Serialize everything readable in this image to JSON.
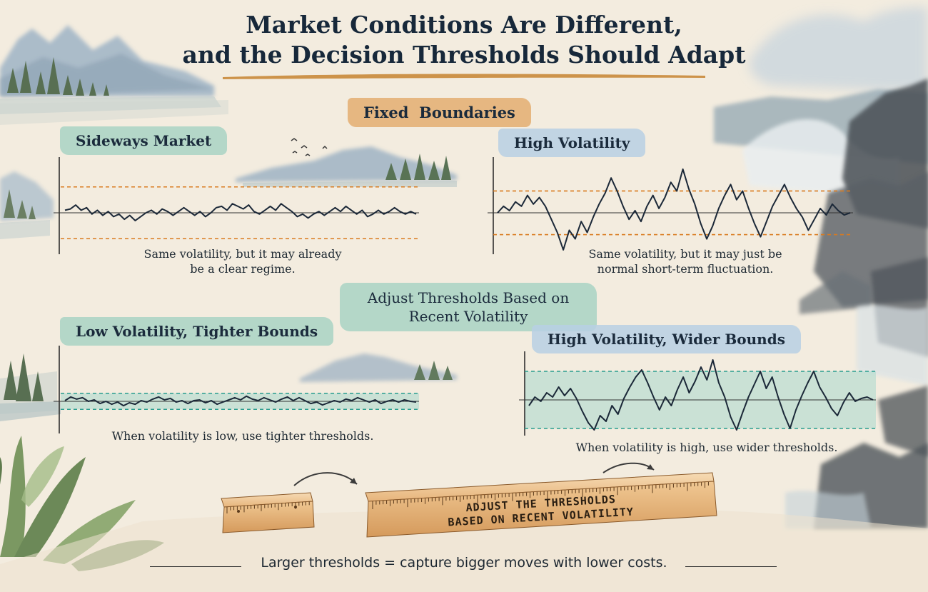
{
  "title": {
    "line1": "Market Conditions Are Different,",
    "line2": "and the Decision Thresholds Should Adapt"
  },
  "section_fixed": {
    "label": "Fixed  Boundaries"
  },
  "section_adjust": {
    "line1": "Adjust Thresholds Based on",
    "line2": "Recent Volatility"
  },
  "panels": {
    "sideways": {
      "label": "Sideways Market",
      "caption_line1": "Same volatility, but it may already",
      "caption_line2": "be a clear regime."
    },
    "high_vol": {
      "label": "High Volatility",
      "caption_line1": "Same volatility, but it may just be",
      "caption_line2": "normal short-term fluctuation."
    },
    "low_tight": {
      "label": "Low Volatility, Tighter Bounds",
      "caption": "When volatility is low, use tighter thresholds."
    },
    "high_wide": {
      "label": "High Volatility, Wider Bounds",
      "caption": "When volatility is high, use wider thresholds."
    }
  },
  "ruler": {
    "line1": "ADJUST THE THRESHOLDS",
    "line2": "BASED ON RECENT VOLATILITY"
  },
  "footer": "Larger thresholds = capture bigger moves with lower costs.",
  "colors": {
    "fixed_threshold": "#d97a1e",
    "adaptive_threshold": "#2a9d8f",
    "band_fill": "#a8d8cc",
    "series_line": "#1b2838"
  },
  "chart_data": [
    {
      "type": "line",
      "name": "sideways",
      "threshold_style": "fixed",
      "band": [
        -1,
        1
      ],
      "ylim": [
        -1.6,
        1.6
      ],
      "y": [
        0.1,
        0.15,
        0.3,
        0.1,
        0.2,
        -0.05,
        0.1,
        -0.1,
        0.05,
        -0.15,
        -0.05,
        -0.25,
        -0.1,
        -0.3,
        -0.15,
        0,
        0.1,
        -0.05,
        0.15,
        0.05,
        -0.1,
        0.05,
        0.2,
        0.05,
        -0.1,
        0.05,
        -0.15,
        0,
        0.2,
        0.25,
        0.1,
        0.35,
        0.25,
        0.15,
        0.3,
        0.05,
        -0.05,
        0.1,
        0.25,
        0.1,
        0.35,
        0.2,
        0.05,
        -0.15,
        -0.05,
        -0.2,
        -0.05,
        0.05,
        -0.1,
        0.05,
        0.2,
        0.05,
        0.25,
        0.1,
        -0.05,
        0.1,
        -0.15,
        -0.05,
        0.1,
        -0.05,
        0.05,
        0.2,
        0.05,
        -0.05,
        0.05,
        -0.05
      ]
    },
    {
      "type": "line",
      "name": "high-volatility",
      "threshold_style": "fixed",
      "band": [
        -1,
        1
      ],
      "ylim": [
        -1.9,
        1.9
      ],
      "y": [
        0,
        0.3,
        0.1,
        0.5,
        0.3,
        0.8,
        0.4,
        0.7,
        0.3,
        -0.3,
        -0.9,
        -1.7,
        -0.8,
        -1.2,
        -0.4,
        -0.9,
        -0.2,
        0.4,
        0.9,
        1.6,
        1.0,
        0.3,
        -0.3,
        0.1,
        -0.4,
        0.3,
        0.8,
        0.2,
        0.7,
        1.4,
        1.0,
        2.0,
        1.1,
        0.4,
        -0.5,
        -1.2,
        -0.6,
        0.2,
        0.8,
        1.3,
        0.6,
        1.0,
        0.2,
        -0.5,
        -1.1,
        -0.4,
        0.3,
        0.8,
        1.3,
        0.7,
        0.2,
        -0.2,
        -0.8,
        -0.3,
        0.2,
        -0.1,
        0.4,
        0.1,
        -0.1,
        0
      ]
    },
    {
      "type": "line",
      "name": "low-volatility-tighter",
      "threshold_style": "adaptive",
      "band": [
        -0.55,
        0.55
      ],
      "ylim": [
        -2.2,
        2.2
      ],
      "y": [
        0.05,
        0.3,
        0.15,
        0.25,
        0,
        0.1,
        -0.15,
        0,
        -0.2,
        -0.05,
        -0.3,
        -0.1,
        -0.2,
        0.05,
        -0.05,
        0.15,
        0.3,
        0.1,
        0.2,
        -0.05,
        0.05,
        -0.15,
        0.05,
        0.1,
        -0.1,
        0.05,
        -0.2,
        -0.05,
        0.1,
        0.25,
        0.1,
        0.35,
        0.15,
        0.05,
        0.25,
        0.1,
        -0.05,
        0.15,
        0.3,
        0.05,
        0.25,
        0.05,
        -0.15,
        -0.05,
        -0.25,
        -0.1,
        0.05,
        -0.05,
        0.15,
        0.05,
        0.25,
        0.1,
        -0.05,
        0.1,
        -0.15,
        0,
        0.1,
        -0.05,
        0.1,
        0,
        -0.05
      ]
    },
    {
      "type": "line",
      "name": "high-volatility-wider",
      "threshold_style": "adaptive",
      "band": [
        -1,
        1
      ],
      "ylim": [
        -1.25,
        1.25
      ],
      "y": [
        -0.2,
        0.1,
        -0.05,
        0.25,
        0.1,
        0.45,
        0.15,
        0.4,
        0.05,
        -0.4,
        -0.8,
        -1.05,
        -0.55,
        -0.75,
        -0.2,
        -0.5,
        0.05,
        0.45,
        0.8,
        1.05,
        0.6,
        0.1,
        -0.35,
        0.1,
        -0.2,
        0.35,
        0.8,
        0.25,
        0.65,
        1.15,
        0.7,
        1.4,
        0.6,
        0.1,
        -0.6,
        -1.05,
        -0.45,
        0.1,
        0.55,
        1.0,
        0.4,
        0.8,
        0.1,
        -0.5,
        -1.0,
        -0.35,
        0.15,
        0.6,
        1.0,
        0.45,
        0.1,
        -0.3,
        -0.55,
        -0.1,
        0.25,
        -0.05,
        0.05,
        0.1,
        0
      ]
    }
  ]
}
